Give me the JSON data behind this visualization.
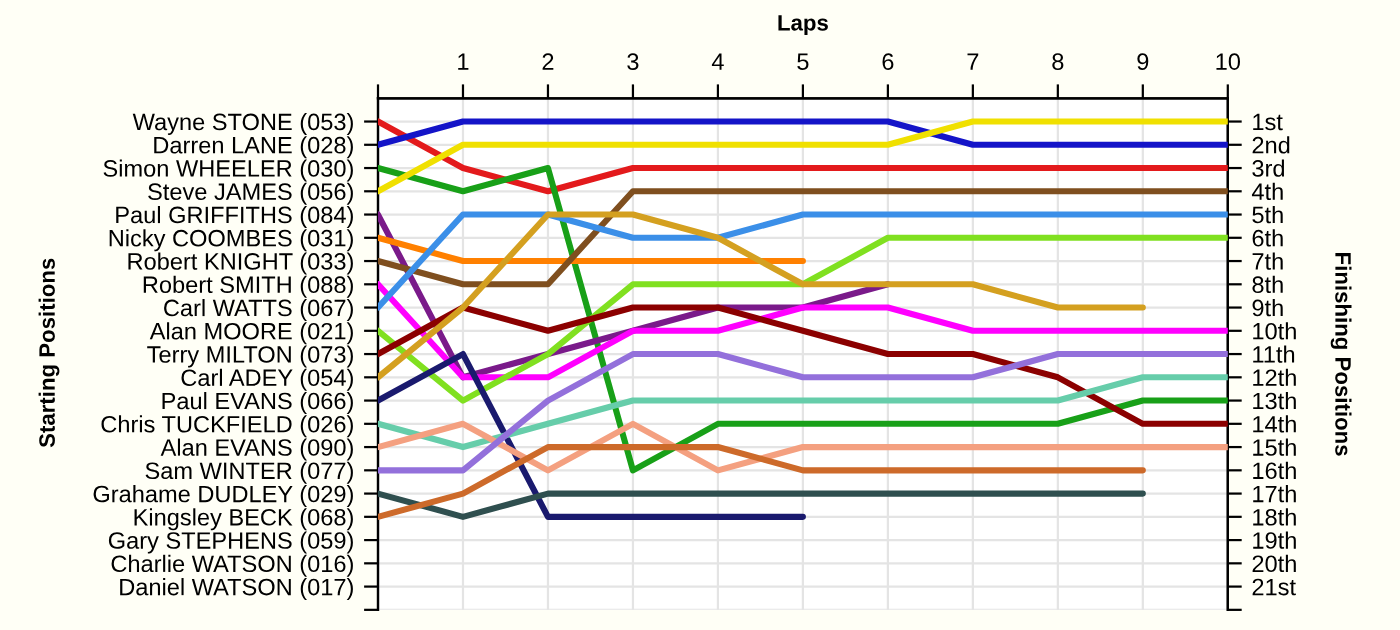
{
  "chart_data": {
    "type": "line",
    "xlabel": "Laps",
    "annotations": [
      "Starting Positions"
    ],
    "y2label": "Finishing Positions",
    "x": [
      0,
      1,
      2,
      3,
      4,
      5,
      6,
      7,
      8,
      9,
      10
    ],
    "xlim": [
      0,
      10
    ],
    "xticks": [
      {
        "value": 0,
        "label": null
      },
      1,
      2,
      3,
      4,
      5,
      6,
      7,
      8,
      9,
      10
    ],
    "y_categories": [
      "Wayne STONE (053)",
      "Darren LANE (028)",
      "Simon WHEELER (030)",
      "Steve JAMES (056)",
      "Paul GRIFFITHS (084)",
      "Nicky COOMBES (031)",
      "Robert KNIGHT (033)",
      "Robert SMITH (088)",
      "Carl WATTS (067)",
      "Alan MOORE (021)",
      "Terry MILTON (073)",
      "Carl ADEY (054)",
      "Paul EVANS (066)",
      "Chris TUCKFIELD (026)",
      "Alan EVANS (090)",
      "Sam WINTER (077)",
      "Grahame DUDLEY (029)",
      "Kingsley BECK (068)",
      "Gary STEPHENS (059)",
      "Charlie WATSON (016)",
      "Daniel WATSON (017)"
    ],
    "y2lim": [
      22,
      0
    ],
    "y2ticks": [
      {
        "value": 1,
        "label": "1st"
      },
      {
        "value": 2,
        "label": "2nd"
      },
      {
        "value": 3,
        "label": "3rd"
      },
      {
        "value": 4,
        "label": "4th"
      },
      {
        "value": 5,
        "label": "5th"
      },
      {
        "value": 6,
        "label": "6th"
      },
      {
        "value": 7,
        "label": "7th"
      },
      {
        "value": 8,
        "label": "8th"
      },
      {
        "value": 9,
        "label": "9th"
      },
      {
        "value": 10,
        "label": "10th"
      },
      {
        "value": 11,
        "label": "11th"
      },
      {
        "value": 12,
        "label": "12th"
      },
      {
        "value": 13,
        "label": "13th"
      },
      {
        "value": 14,
        "label": "14th"
      },
      {
        "value": 15,
        "label": "15th"
      },
      {
        "value": 16,
        "label": "16th"
      },
      {
        "value": 17,
        "label": "17th"
      },
      {
        "value": 18,
        "label": "18th"
      },
      {
        "value": 19,
        "label": "19th"
      },
      {
        "value": 20,
        "label": "20th"
      },
      {
        "value": 21,
        "label": "21st"
      },
      {
        "value": 22,
        "label": null
      }
    ],
    "grid": true,
    "line_style": "solid",
    "marker": "none",
    "series": [
      {
        "axis": "y2",
        "color": "#e31a1c",
        "values": [
          1,
          3,
          4,
          3,
          3,
          3,
          3,
          3,
          3,
          3,
          3
        ]
      },
      {
        "axis": "y2",
        "color": "#1414c8",
        "values": [
          2,
          1,
          1,
          1,
          1,
          1,
          1,
          2,
          2,
          2,
          2
        ]
      },
      {
        "axis": "y2",
        "color": "#18a018",
        "values": [
          3,
          4,
          3,
          16,
          14,
          14,
          14,
          14,
          14,
          13,
          13
        ]
      },
      {
        "axis": "y2",
        "color": "#f0e000",
        "values": [
          4,
          2,
          2,
          2,
          2,
          2,
          2,
          1,
          1,
          1,
          1
        ]
      },
      {
        "axis": "y2",
        "color": "#7a1a8a",
        "values": [
          5,
          12,
          11,
          10,
          9,
          9,
          8,
          null,
          null,
          null,
          null
        ]
      },
      {
        "axis": "y2",
        "color": "#ff8000",
        "values": [
          6,
          7,
          7,
          7,
          7,
          7,
          null,
          null,
          null,
          null,
          null
        ]
      },
      {
        "axis": "y2",
        "color": "#7f4f1f",
        "values": [
          7,
          8,
          8,
          4,
          4,
          4,
          4,
          4,
          4,
          4,
          4
        ]
      },
      {
        "axis": "y2",
        "color": "#ff00ff",
        "values": [
          8,
          12,
          12,
          10,
          10,
          9,
          9,
          10,
          10,
          10,
          10
        ]
      },
      {
        "axis": "y2",
        "color": "#3b8fe8",
        "values": [
          9,
          5,
          5,
          6,
          6,
          5,
          5,
          5,
          5,
          5,
          5
        ]
      },
      {
        "axis": "y2",
        "color": "#80e020",
        "values": [
          10,
          13,
          11,
          8,
          8,
          8,
          6,
          6,
          6,
          6,
          6
        ]
      },
      {
        "axis": "y2",
        "color": "#8b0000",
        "values": [
          11,
          9,
          10,
          9,
          9,
          10,
          11,
          11,
          12,
          14,
          14
        ]
      },
      {
        "axis": "y2",
        "color": "#d4a020",
        "values": [
          12,
          9,
          5,
          5,
          6,
          8,
          8,
          8,
          9,
          9,
          null
        ]
      },
      {
        "axis": "y2",
        "color": "#1a1a6e",
        "values": [
          13,
          11,
          18,
          18,
          18,
          18,
          null,
          null,
          null,
          null,
          null
        ]
      },
      {
        "axis": "y2",
        "color": "#66cdaa",
        "values": [
          14,
          15,
          14,
          13,
          13,
          13,
          13,
          13,
          13,
          12,
          12
        ]
      },
      {
        "axis": "y2",
        "color": "#f4a080",
        "values": [
          15,
          14,
          16,
          14,
          16,
          15,
          15,
          15,
          15,
          15,
          15
        ]
      },
      {
        "axis": "y2",
        "color": "#9370db",
        "values": [
          16,
          16,
          13,
          11,
          11,
          12,
          12,
          12,
          11,
          11,
          11
        ]
      },
      {
        "axis": "y2",
        "color": "#2f4f4f",
        "values": [
          17,
          18,
          17,
          17,
          17,
          17,
          17,
          17,
          17,
          17,
          null
        ]
      },
      {
        "axis": "y2",
        "color": "#cd6a2a",
        "values": [
          18,
          17,
          15,
          15,
          15,
          16,
          16,
          16,
          16,
          16,
          null
        ]
      }
    ]
  }
}
